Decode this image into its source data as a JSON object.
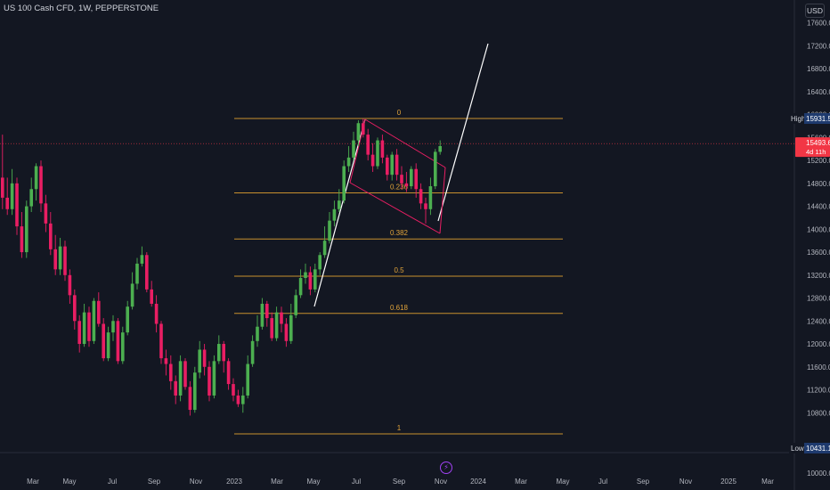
{
  "header": {
    "title": "US 100 Cash CFD, 1W, PEPPERSTONE",
    "currency": "USD"
  },
  "chart_data": {
    "type": "candlestick",
    "symbol": "US 100 Cash CFD",
    "interval": "1W",
    "source": "PEPPERSTONE",
    "y_ticks": [
      "17600.0",
      "17200.0",
      "16800.0",
      "16400.0",
      "16000.0",
      "15600.0",
      "15200.0",
      "14800.0",
      "14400.0",
      "14000.0",
      "13600.0",
      "13200.0",
      "12800.0",
      "12400.0",
      "12000.0",
      "11600.0",
      "11200.0",
      "10800.0",
      "10000.0"
    ],
    "y_range": [
      10000,
      17800
    ],
    "x_ticks": [
      "Mar",
      "May",
      "Jul",
      "Sep",
      "Nov",
      "2023",
      "Mar",
      "May",
      "Jul",
      "Sep",
      "Nov",
      "2024",
      "Mar",
      "May",
      "Jul",
      "Sep",
      "Nov",
      "2025",
      "Mar"
    ],
    "high_marker": {
      "label": "High",
      "value": "15931.5"
    },
    "low_marker": {
      "label": "Low",
      "value": "10431.1"
    },
    "last_price": {
      "value": "15493.6",
      "countdown": "4d 11h"
    },
    "fib_levels": [
      {
        "label": "0",
        "price": 15931.5
      },
      {
        "label": "0.236",
        "price": 14633.5
      },
      {
        "label": "0.382",
        "price": 13830.5
      },
      {
        "label": "0.5",
        "price": 13181.3
      },
      {
        "label": "0.618",
        "price": 12532.3
      },
      {
        "label": "1",
        "price": 10431.1
      }
    ],
    "candles": [
      [
        14900,
        14550,
        15650,
        14350
      ],
      [
        14550,
        14350,
        14900,
        14250
      ],
      [
        14350,
        14800,
        15050,
        14250
      ],
      [
        14800,
        14050,
        14900,
        13900
      ],
      [
        14050,
        13600,
        14300,
        13500
      ],
      [
        13600,
        14400,
        14500,
        13500
      ],
      [
        14400,
        14700,
        14900,
        14300
      ],
      [
        14700,
        15100,
        15150,
        14500
      ],
      [
        15100,
        14450,
        15200,
        14300
      ],
      [
        14450,
        14100,
        14600,
        13950
      ],
      [
        14100,
        13650,
        14300,
        13550
      ],
      [
        13650,
        13300,
        13900,
        13200
      ],
      [
        13300,
        13700,
        13850,
        13200
      ],
      [
        13700,
        13200,
        13800,
        13100
      ],
      [
        13200,
        12850,
        13300,
        12700
      ],
      [
        12850,
        12400,
        12950,
        12250
      ],
      [
        12400,
        12000,
        12500,
        11850
      ],
      [
        12000,
        12550,
        12700,
        11950
      ],
      [
        12550,
        12050,
        12650,
        11950
      ],
      [
        12050,
        12750,
        12800,
        12000
      ],
      [
        12750,
        12350,
        12900,
        12300
      ],
      [
        12350,
        11750,
        12450,
        11700
      ],
      [
        11750,
        12200,
        12300,
        11700
      ],
      [
        12200,
        12400,
        12500,
        12050
      ],
      [
        12400,
        11700,
        12450,
        11650
      ],
      [
        11700,
        12200,
        12300,
        11650
      ],
      [
        12200,
        12650,
        12750,
        12150
      ],
      [
        12650,
        13050,
        13250,
        12600
      ],
      [
        13050,
        13400,
        13500,
        12950
      ],
      [
        13400,
        13550,
        13700,
        13350
      ],
      [
        13550,
        12950,
        13600,
        12900
      ],
      [
        12950,
        12700,
        13100,
        12650
      ],
      [
        12700,
        12350,
        12850,
        12200
      ],
      [
        12350,
        11750,
        12400,
        11650
      ],
      [
        11750,
        11650,
        11900,
        11450
      ],
      [
        11650,
        11350,
        11800,
        11200
      ],
      [
        11350,
        11100,
        11450,
        10950
      ],
      [
        11100,
        11700,
        11800,
        11000
      ],
      [
        11700,
        11250,
        11750,
        11200
      ],
      [
        11250,
        10850,
        11350,
        10750
      ],
      [
        10850,
        11500,
        11600,
        10800
      ],
      [
        11500,
        11900,
        12050,
        11400
      ],
      [
        11900,
        11600,
        12000,
        11450
      ],
      [
        11600,
        11100,
        11700,
        11000
      ],
      [
        11100,
        11700,
        11800,
        11050
      ],
      [
        11700,
        12000,
        12150,
        11650
      ],
      [
        12000,
        11700,
        12050,
        11500
      ],
      [
        11700,
        11300,
        11750,
        11200
      ],
      [
        11300,
        11100,
        11400,
        11000
      ],
      [
        11100,
        10950,
        11200,
        10900
      ],
      [
        10950,
        11100,
        11250,
        10800
      ],
      [
        11100,
        11650,
        11800,
        11050
      ],
      [
        11650,
        12050,
        12150,
        11600
      ],
      [
        12050,
        12300,
        12500,
        11950
      ],
      [
        12300,
        12700,
        12800,
        12250
      ],
      [
        12700,
        12450,
        12750,
        12300
      ],
      [
        12450,
        12100,
        12550,
        12050
      ],
      [
        12100,
        12550,
        12650,
        12050
      ],
      [
        12550,
        12350,
        12650,
        12200
      ],
      [
        12350,
        12050,
        12450,
        11950
      ],
      [
        12050,
        12500,
        12700,
        12000
      ],
      [
        12500,
        12850,
        12950,
        12450
      ],
      [
        12850,
        13150,
        13300,
        12800
      ],
      [
        13150,
        13250,
        13400,
        13050
      ],
      [
        13250,
        12950,
        13350,
        12850
      ],
      [
        12950,
        13300,
        13400,
        12900
      ],
      [
        13300,
        13550,
        13600,
        13200
      ],
      [
        13550,
        13800,
        14050,
        13500
      ],
      [
        13800,
        14150,
        14300,
        13750
      ],
      [
        14150,
        14350,
        14500,
        14050
      ],
      [
        14350,
        14500,
        14700,
        14300
      ],
      [
        14500,
        15100,
        15200,
        14450
      ],
      [
        15100,
        15250,
        15450,
        15000
      ],
      [
        15250,
        15550,
        15700,
        15200
      ],
      [
        15550,
        15850,
        15900,
        15450
      ],
      [
        15850,
        15650,
        15930,
        15600
      ],
      [
        15650,
        15300,
        15750,
        15200
      ],
      [
        15300,
        15100,
        15500,
        15000
      ],
      [
        15100,
        15550,
        15600,
        15050
      ],
      [
        15550,
        15250,
        15650,
        15150
      ],
      [
        15250,
        14950,
        15300,
        14850
      ],
      [
        14950,
        15300,
        15350,
        14850
      ],
      [
        15300,
        14950,
        15400,
        14850
      ],
      [
        14950,
        14800,
        15100,
        14700
      ],
      [
        14800,
        14750,
        15000,
        14650
      ],
      [
        14750,
        15050,
        15100,
        14700
      ],
      [
        15050,
        14700,
        15150,
        14550
      ],
      [
        14700,
        14450,
        14800,
        14350
      ],
      [
        14450,
        14350,
        14550,
        14100
      ],
      [
        14350,
        14750,
        14900,
        14250
      ],
      [
        14750,
        15350,
        15400,
        14700
      ],
      [
        15350,
        15450,
        15550,
        15300
      ]
    ]
  }
}
